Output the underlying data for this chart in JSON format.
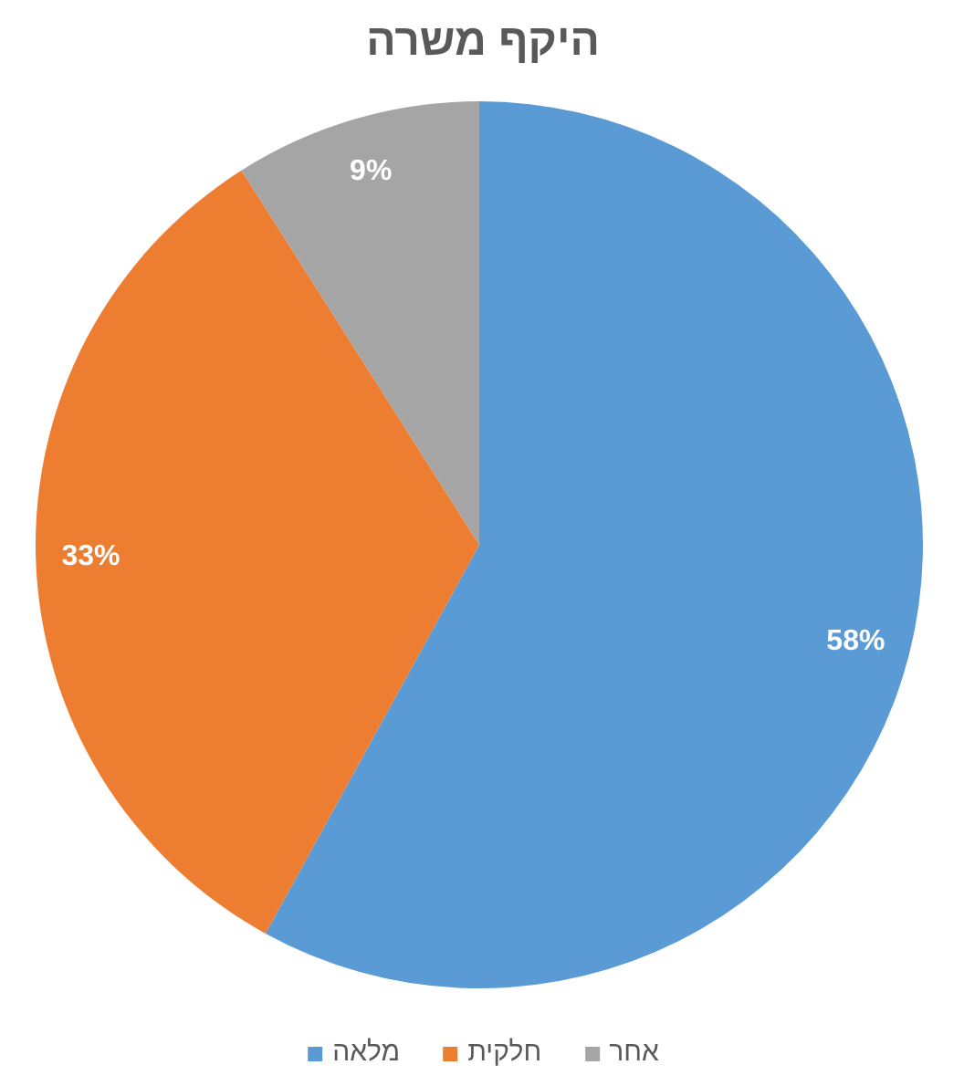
{
  "chart_data": {
    "type": "pie",
    "title": "היקף משרה",
    "categories": [
      "מלאה",
      "חלקית",
      "אחר"
    ],
    "values": [
      58,
      33,
      9
    ],
    "colors": [
      "#5b9bd5",
      "#ed7d31",
      "#a5a5a5"
    ],
    "value_labels": [
      "58%",
      "33%",
      "9%"
    ],
    "legend": "bottom"
  }
}
